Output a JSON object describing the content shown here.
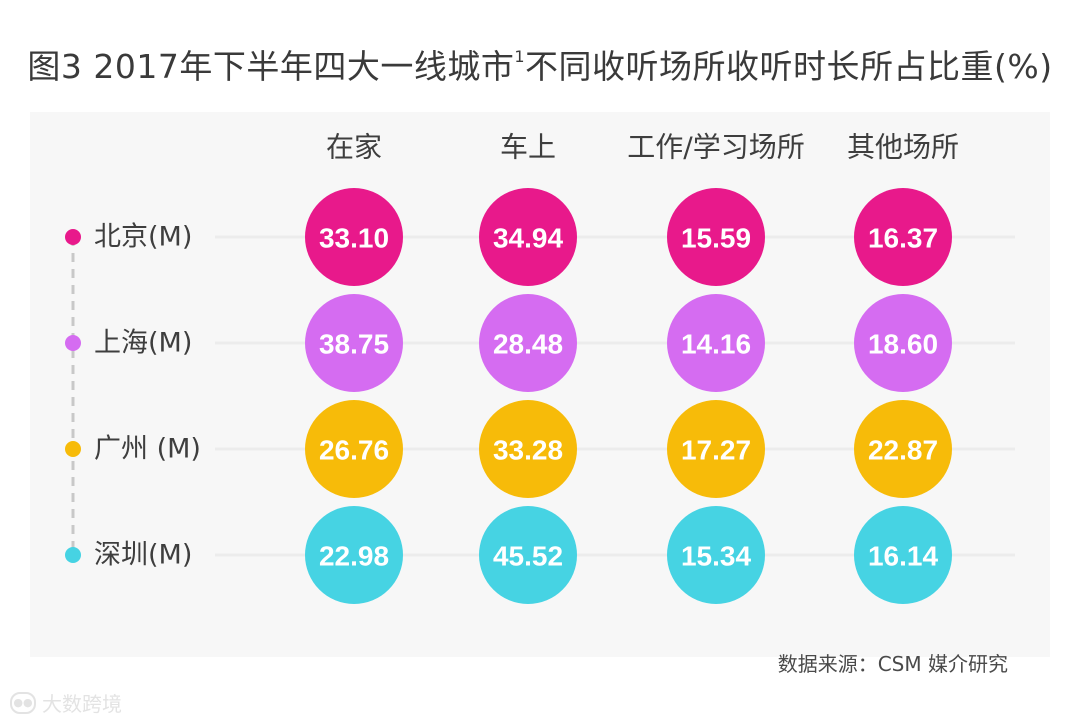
{
  "chart_data": {
    "type": "table",
    "title": "图3 2017年下半年四大一线城市",
    "title_sup": "1",
    "title_rest": "不同收听场所收听时长所占比重(%)",
    "columns": [
      "在家",
      "车上",
      "工作/学习场所",
      "其他场所"
    ],
    "rows": [
      {
        "name": "北京(M)",
        "color": "#e8198b",
        "values": [
          33.1,
          34.94,
          15.59,
          16.37
        ]
      },
      {
        "name": "上海(M)",
        "color": "#d56cf1",
        "values": [
          38.75,
          28.48,
          14.16,
          18.6
        ]
      },
      {
        "name": "广州 (M)",
        "color": "#f7bb09",
        "values": [
          26.76,
          33.28,
          17.27,
          22.87
        ]
      },
      {
        "name": "深圳(M)",
        "color": "#46d3e3",
        "values": [
          22.98,
          45.52,
          15.34,
          16.14
        ]
      }
    ],
    "decimals": 2
  },
  "source": "数据来源：CSM 媒介研究",
  "watermark": "大数跨境",
  "watermark_icon": "camera-logo-icon"
}
